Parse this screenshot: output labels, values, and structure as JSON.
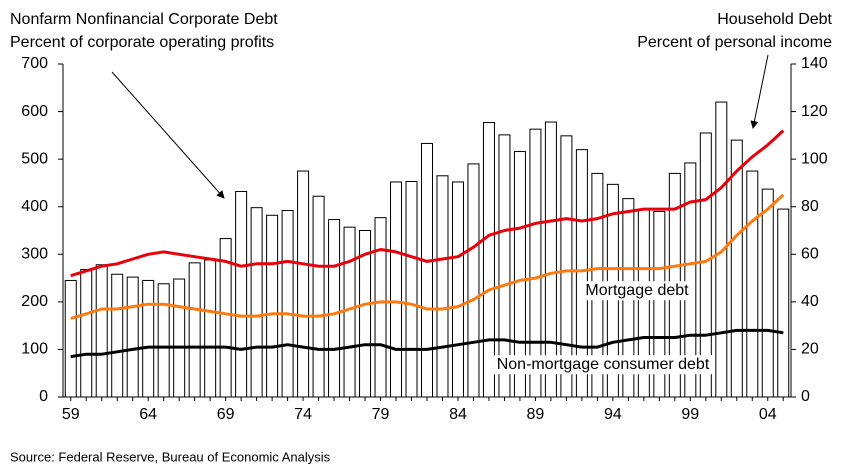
{
  "chart_data": {
    "type": "bar",
    "left_title": [
      "Nonfarm Nonfinancial Corporate Debt",
      "Percent of corporate operating profits"
    ],
    "right_title": [
      "Household Debt",
      "Percent of personal income"
    ],
    "source": "Source: Federal Reserve, Bureau of Economic Analysis",
    "categories": [
      "59",
      null,
      null,
      null,
      null,
      "64",
      null,
      null,
      null,
      null,
      "69",
      null,
      null,
      null,
      null,
      "74",
      null,
      null,
      null,
      null,
      "79",
      null,
      null,
      null,
      null,
      "84",
      null,
      null,
      null,
      null,
      "89",
      null,
      null,
      null,
      null,
      "94",
      null,
      null,
      null,
      null,
      "99",
      null,
      null,
      null,
      null,
      "04",
      null
    ],
    "ylim": [
      0,
      700
    ],
    "yticks": [
      0,
      100,
      200,
      300,
      400,
      500,
      600,
      700
    ],
    "y2lim": [
      0,
      140
    ],
    "y2ticks": [
      0,
      20,
      40,
      60,
      80,
      100,
      120,
      140
    ],
    "series": [
      {
        "type": "bar",
        "color": "#ffffff",
        "values": [
          245,
          268,
          278,
          258,
          252,
          245,
          238,
          248,
          282,
          288,
          333,
          432,
          398,
          382,
          392,
          475,
          422,
          373,
          357,
          350,
          377,
          452,
          453,
          533,
          465,
          452,
          490,
          577,
          551,
          516,
          563,
          578,
          549,
          520,
          470,
          447,
          417,
          395,
          390,
          470,
          492,
          555,
          620,
          540,
          475,
          437,
          395
        ]
      },
      {
        "type": "line",
        "axis": "y2",
        "color": "#e8000b",
        "values": [
          51,
          53,
          55,
          56,
          58,
          60,
          61,
          60,
          59,
          58,
          57,
          55,
          56,
          56,
          57,
          56,
          55,
          55,
          57,
          60,
          62,
          61,
          59,
          57,
          58,
          59,
          63,
          68,
          70,
          71,
          73,
          74,
          75,
          74,
          75,
          77,
          78,
          79,
          79,
          79,
          82,
          83,
          88,
          95,
          101,
          106,
          112
        ]
      },
      {
        "type": "line",
        "axis": "y2",
        "name": "Mortgage debt",
        "color": "#ff7a0e",
        "values": [
          33,
          35,
          37,
          37,
          38,
          39,
          39,
          38,
          37,
          36,
          35,
          34,
          34,
          35,
          35,
          34,
          34,
          35,
          37,
          39,
          40,
          40,
          39,
          37,
          37,
          38,
          41,
          45,
          47,
          49,
          50,
          52,
          53,
          53,
          54,
          54,
          54,
          54,
          54,
          55,
          56,
          57,
          61,
          68,
          74,
          79,
          85
        ]
      },
      {
        "type": "line",
        "axis": "y2",
        "name": "Non-mortgage consumer debt",
        "color": "#000000",
        "values": [
          17,
          18,
          18,
          19,
          20,
          21,
          21,
          21,
          21,
          21,
          21,
          20,
          21,
          21,
          22,
          21,
          20,
          20,
          21,
          22,
          22,
          20,
          20,
          20,
          21,
          22,
          23,
          24,
          24,
          23,
          23,
          23,
          22,
          21,
          21,
          23,
          24,
          25,
          25,
          25,
          26,
          26,
          27,
          28,
          28,
          28,
          27
        ]
      }
    ]
  }
}
